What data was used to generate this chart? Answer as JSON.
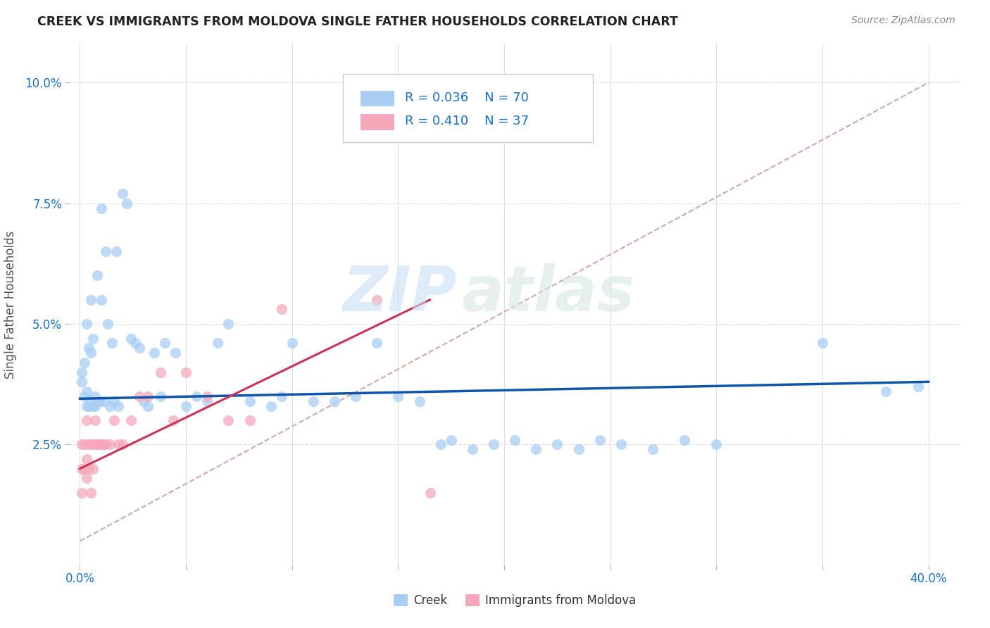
{
  "title": "CREEK VS IMMIGRANTS FROM MOLDOVA SINGLE FATHER HOUSEHOLDS CORRELATION CHART",
  "source": "Source: ZipAtlas.com",
  "ylabel": "Single Father Households",
  "ytick_vals": [
    0.025,
    0.05,
    0.075,
    0.1
  ],
  "ytick_labels": [
    "2.5%",
    "5.0%",
    "7.5%",
    "10.0%"
  ],
  "xtick_vals": [
    0.0,
    0.05,
    0.1,
    0.15,
    0.2,
    0.25,
    0.3,
    0.35,
    0.4
  ],
  "legend_r1": "R = 0.036",
  "legend_n1": "N = 70",
  "legend_r2": "R = 0.410",
  "legend_n2": "N = 37",
  "color_creek": "#a8cef5",
  "color_moldova": "#f5a8bb",
  "color_line_creek": "#1155aa",
  "color_line_moldova": "#cc3355",
  "color_trend_dashed": "#ccaaaa",
  "background_color": "#ffffff",
  "grid_color": "#dddddd",
  "watermark_zip": "ZIP",
  "watermark_atlas": "atlas",
  "creek_x": [
    0.001,
    0.001,
    0.002,
    0.002,
    0.003,
    0.003,
    0.003,
    0.004,
    0.004,
    0.005,
    0.005,
    0.005,
    0.006,
    0.006,
    0.007,
    0.007,
    0.008,
    0.009,
    0.01,
    0.01,
    0.011,
    0.012,
    0.013,
    0.014,
    0.015,
    0.016,
    0.017,
    0.018,
    0.02,
    0.022,
    0.024,
    0.026,
    0.028,
    0.03,
    0.032,
    0.035,
    0.038,
    0.04,
    0.045,
    0.05,
    0.055,
    0.06,
    0.065,
    0.07,
    0.08,
    0.09,
    0.095,
    0.1,
    0.11,
    0.12,
    0.13,
    0.14,
    0.15,
    0.16,
    0.17,
    0.175,
    0.185,
    0.195,
    0.205,
    0.215,
    0.225,
    0.235,
    0.245,
    0.255,
    0.27,
    0.285,
    0.3,
    0.35,
    0.38,
    0.395
  ],
  "creek_y": [
    0.033,
    0.036,
    0.035,
    0.038,
    0.033,
    0.036,
    0.04,
    0.033,
    0.037,
    0.034,
    0.036,
    0.04,
    0.033,
    0.037,
    0.035,
    0.033,
    0.036,
    0.034,
    0.035,
    0.037,
    0.034,
    0.036,
    0.035,
    0.033,
    0.036,
    0.034,
    0.035,
    0.033,
    0.036,
    0.035,
    0.034,
    0.036,
    0.035,
    0.034,
    0.033,
    0.034,
    0.035,
    0.034,
    0.034,
    0.033,
    0.035,
    0.034,
    0.036,
    0.035,
    0.034,
    0.033,
    0.035,
    0.036,
    0.034,
    0.034,
    0.035,
    0.036,
    0.035,
    0.034,
    0.035,
    0.036,
    0.034,
    0.035,
    0.036,
    0.034,
    0.035,
    0.034,
    0.036,
    0.035,
    0.034,
    0.036,
    0.035,
    0.036,
    0.036,
    0.037
  ],
  "creek_y_scatter": [
    0.038,
    0.04,
    0.035,
    0.042,
    0.033,
    0.036,
    0.05,
    0.033,
    0.045,
    0.034,
    0.044,
    0.055,
    0.033,
    0.047,
    0.035,
    0.033,
    0.06,
    0.034,
    0.055,
    0.074,
    0.034,
    0.065,
    0.05,
    0.033,
    0.046,
    0.034,
    0.065,
    0.033,
    0.077,
    0.075,
    0.047,
    0.046,
    0.045,
    0.034,
    0.033,
    0.044,
    0.035,
    0.046,
    0.044,
    0.033,
    0.035,
    0.034,
    0.046,
    0.05,
    0.034,
    0.033,
    0.035,
    0.046,
    0.034,
    0.034,
    0.035,
    0.046,
    0.035,
    0.034,
    0.025,
    0.026,
    0.024,
    0.025,
    0.026,
    0.024,
    0.025,
    0.024,
    0.026,
    0.025,
    0.024,
    0.026,
    0.025,
    0.046,
    0.036,
    0.037
  ],
  "moldova_x": [
    0.001,
    0.001,
    0.001,
    0.002,
    0.002,
    0.003,
    0.003,
    0.003,
    0.004,
    0.004,
    0.005,
    0.005,
    0.006,
    0.006,
    0.007,
    0.007,
    0.008,
    0.009,
    0.01,
    0.011,
    0.012,
    0.014,
    0.016,
    0.018,
    0.02,
    0.024,
    0.028,
    0.032,
    0.038,
    0.044,
    0.05,
    0.06,
    0.07,
    0.08,
    0.095,
    0.14,
    0.165
  ],
  "moldova_y_scatter": [
    0.025,
    0.02,
    0.015,
    0.025,
    0.02,
    0.03,
    0.022,
    0.018,
    0.025,
    0.02,
    0.025,
    0.015,
    0.025,
    0.02,
    0.025,
    0.03,
    0.025,
    0.025,
    0.025,
    0.025,
    0.025,
    0.025,
    0.03,
    0.025,
    0.025,
    0.03,
    0.035,
    0.035,
    0.04,
    0.03,
    0.04,
    0.035,
    0.03,
    0.03,
    0.053,
    0.055,
    0.015
  ],
  "xlim": [
    -0.005,
    0.415
  ],
  "ylim": [
    0.0,
    0.108
  ],
  "creek_line_x": [
    0.0,
    0.4
  ],
  "creek_line_y": [
    0.0345,
    0.038
  ],
  "moldova_line_x": [
    0.0,
    0.165
  ],
  "moldova_line_y": [
    0.02,
    0.055
  ],
  "dashed_line_x": [
    0.0,
    0.4
  ],
  "dashed_line_y": [
    0.005,
    0.1
  ]
}
